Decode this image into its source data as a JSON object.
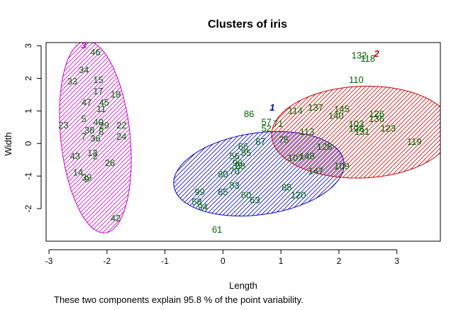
{
  "chart_data": {
    "type": "scatter",
    "title": "Clusters of iris",
    "xlabel": "Length",
    "ylabel": "Width",
    "footnote": "These two components explain 95.8 % of the point variability.",
    "xlim": [
      -3.05,
      3.75
    ],
    "ylim": [
      -3.0,
      3.1
    ],
    "x_ticks": [
      -3,
      -2,
      -1,
      0,
      1,
      2,
      3
    ],
    "x_tick_labels": [
      "-3",
      "-2",
      "-1",
      "0",
      "1",
      "2",
      "3"
    ],
    "y_ticks": [
      -2,
      -1,
      0,
      1,
      2,
      3
    ],
    "y_tick_labels": [
      "-2",
      "-1",
      "0",
      "1",
      "2",
      "3"
    ],
    "point_color": "#006400",
    "clusters": [
      {
        "label": "1",
        "color": "#0000cc",
        "center": [
          0.85,
          1.1
        ],
        "ellipse": {
          "cx": 0.62,
          "cy": -0.93,
          "rx": 1.55,
          "ry": 1.2,
          "angle": 30
        }
      },
      {
        "label": "2",
        "color": "#cc0000",
        "center": [
          2.65,
          2.75
        ],
        "ellipse": {
          "cx": 2.4,
          "cy": 0.35,
          "rx": 1.57,
          "ry": 1.4,
          "angle": 15
        }
      },
      {
        "label": "3",
        "color": "#cc00cc",
        "center": [
          -2.4,
          3.0
        ],
        "ellipse": {
          "cx": -2.2,
          "cy": 0.2,
          "rx": 0.6,
          "ry": 2.95,
          "angle": 3
        }
      }
    ],
    "points": [
      {
        "label": "46",
        "x": -2.2,
        "y": 2.8
      },
      {
        "label": "34",
        "x": -2.4,
        "y": 2.25
      },
      {
        "label": "33",
        "x": -2.6,
        "y": 1.9
      },
      {
        "label": "15",
        "x": -2.15,
        "y": 1.95
      },
      {
        "label": "17",
        "x": -2.15,
        "y": 1.6
      },
      {
        "label": "19",
        "x": -1.85,
        "y": 1.5
      },
      {
        "label": "47",
        "x": -2.35,
        "y": 1.25
      },
      {
        "label": "45",
        "x": -2.05,
        "y": 1.25
      },
      {
        "label": "11",
        "x": -2.1,
        "y": 1.05
      },
      {
        "label": "23",
        "x": -2.75,
        "y": 0.55
      },
      {
        "label": "5",
        "x": -2.4,
        "y": 0.75
      },
      {
        "label": "40",
        "x": -2.15,
        "y": 0.65
      },
      {
        "label": "29",
        "x": -2.05,
        "y": 0.55
      },
      {
        "label": "22",
        "x": -1.75,
        "y": 0.55
      },
      {
        "label": "38",
        "x": -2.3,
        "y": 0.4
      },
      {
        "label": "8",
        "x": -2.1,
        "y": 0.35
      },
      {
        "label": "24",
        "x": -1.75,
        "y": 0.2
      },
      {
        "label": "7",
        "x": -2.4,
        "y": 0.2
      },
      {
        "label": "36",
        "x": -2.2,
        "y": 0.15
      },
      {
        "label": "43",
        "x": -2.55,
        "y": -0.4
      },
      {
        "label": "14",
        "x": -2.5,
        "y": -0.9
      },
      {
        "label": "39",
        "x": -2.35,
        "y": -1.05
      },
      {
        "label": "9",
        "x": -2.35,
        "y": -1.1
      },
      {
        "label": "26",
        "x": -1.95,
        "y": -0.6
      },
      {
        "label": "2",
        "x": -2.2,
        "y": -0.4
      },
      {
        "label": "13",
        "x": -2.25,
        "y": -0.3
      },
      {
        "label": "42",
        "x": -1.85,
        "y": -2.3
      },
      {
        "label": "86",
        "x": 0.45,
        "y": 0.9
      },
      {
        "label": "57",
        "x": 0.75,
        "y": 0.65
      },
      {
        "label": "71",
        "x": 0.95,
        "y": 0.6
      },
      {
        "label": "52",
        "x": 0.75,
        "y": 0.45
      },
      {
        "label": "66",
        "x": 0.35,
        "y": -0.1
      },
      {
        "label": "87",
        "x": 0.65,
        "y": 0.05
      },
      {
        "label": "85",
        "x": 0.4,
        "y": -0.3
      },
      {
        "label": "75",
        "x": 1.05,
        "y": 0.1
      },
      {
        "label": "56",
        "x": 0.2,
        "y": -0.4
      },
      {
        "label": "96",
        "x": 0.25,
        "y": -0.6
      },
      {
        "label": "68",
        "x": 0.3,
        "y": -0.7
      },
      {
        "label": "80",
        "x": 0.0,
        "y": -0.95
      },
      {
        "label": "70",
        "x": 0.2,
        "y": -0.85
      },
      {
        "label": "83",
        "x": 0.2,
        "y": -1.3
      },
      {
        "label": "65",
        "x": 0.0,
        "y": -1.5
      },
      {
        "label": "60",
        "x": 0.4,
        "y": -1.6
      },
      {
        "label": "63",
        "x": 0.55,
        "y": -1.75
      },
      {
        "label": "99",
        "x": -0.4,
        "y": -1.5
      },
      {
        "label": "58",
        "x": -0.45,
        "y": -1.8
      },
      {
        "label": "94",
        "x": -0.35,
        "y": -1.95
      },
      {
        "label": "61",
        "x": -0.1,
        "y": -2.65
      },
      {
        "label": "88",
        "x": 1.1,
        "y": -1.35
      },
      {
        "label": "120",
        "x": 1.3,
        "y": -1.6
      },
      {
        "label": "147",
        "x": 1.6,
        "y": -0.85
      },
      {
        "label": "148",
        "x": 1.45,
        "y": -0.4
      },
      {
        "label": "107",
        "x": 1.25,
        "y": -0.45
      },
      {
        "label": "128",
        "x": 1.75,
        "y": -0.1
      },
      {
        "label": "114",
        "x": 1.25,
        "y": 1.0
      },
      {
        "label": "137",
        "x": 1.6,
        "y": 1.1
      },
      {
        "label": "113",
        "x": 1.45,
        "y": 0.35
      },
      {
        "label": "103",
        "x": 2.3,
        "y": 0.6
      },
      {
        "label": "108",
        "x": 2.3,
        "y": 0.45
      },
      {
        "label": "126",
        "x": 2.65,
        "y": 0.9
      },
      {
        "label": "136",
        "x": 2.65,
        "y": 0.75
      },
      {
        "label": "123",
        "x": 2.85,
        "y": 0.45
      },
      {
        "label": "131",
        "x": 2.4,
        "y": 0.35
      },
      {
        "label": "119",
        "x": 3.3,
        "y": 0.05
      },
      {
        "label": "110",
        "x": 2.3,
        "y": 1.95
      },
      {
        "label": "132",
        "x": 2.35,
        "y": 2.7
      },
      {
        "label": "118",
        "x": 2.5,
        "y": 2.6
      },
      {
        "label": "109",
        "x": 2.05,
        "y": -0.7
      },
      {
        "label": "145",
        "x": 2.05,
        "y": 1.05
      },
      {
        "label": "140",
        "x": 1.95,
        "y": 0.85
      }
    ]
  }
}
